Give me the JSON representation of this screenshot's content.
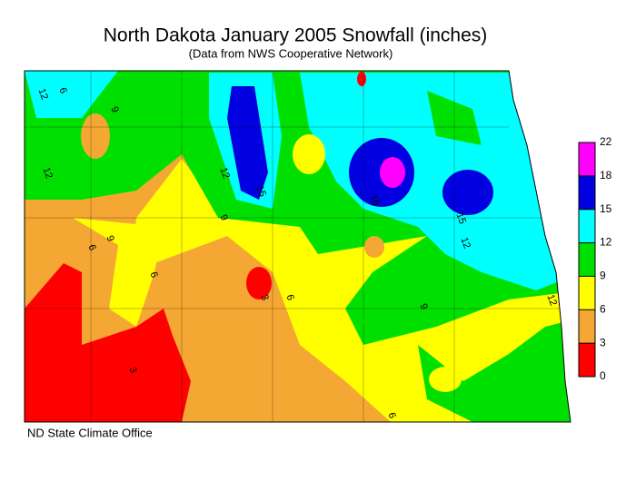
{
  "title": "North Dakota January 2005 Snowfall (inches)",
  "subtitle": "(Data from NWS Cooperative Network)",
  "credit": "ND State Climate Office",
  "legend": {
    "ticks": [
      0,
      3,
      6,
      9,
      12,
      15,
      18,
      22
    ],
    "colors": [
      "#ff0000",
      "#f5a733",
      "#ffff00",
      "#00e000",
      "#00ffff",
      "#0000e0",
      "#ff00ff"
    ]
  },
  "contour_labels": [
    "12",
    "6",
    "9",
    "12",
    "12",
    "15",
    "15",
    "15",
    "9",
    "6",
    "9",
    "3",
    "6",
    "6",
    "9",
    "12",
    "12",
    "6",
    "3"
  ]
}
